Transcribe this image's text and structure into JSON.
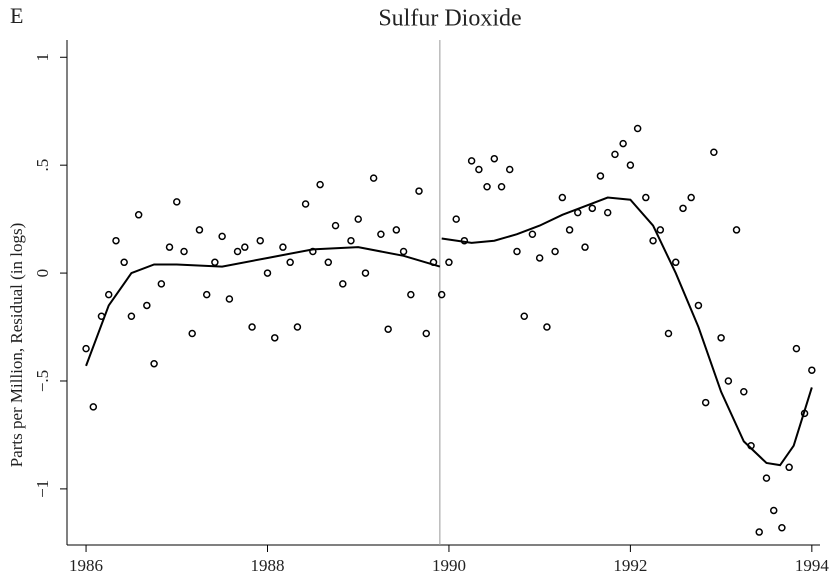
{
  "chart_data": {
    "type": "scatter",
    "panel_label": "E",
    "title": "Sulfur Dioxide",
    "ylabel": "Parts per Million, Residual (in logs)",
    "xlim": [
      1985.79,
      1994.09
    ],
    "ylim": [
      -1.26,
      1.08
    ],
    "xticks": [
      1986,
      1988,
      1990,
      1992,
      1994
    ],
    "yticks": [
      {
        "value": 1,
        "label": "1"
      },
      {
        "value": 0.5,
        "label": ".5"
      },
      {
        "value": 0,
        "label": "0"
      },
      {
        "value": -0.5,
        "label": "−.5"
      },
      {
        "value": -1,
        "label": "−1"
      }
    ],
    "vline": 1989.9,
    "color": "#000000",
    "points": {
      "x": [
        1986.0,
        1986.08,
        1986.17,
        1986.25,
        1986.33,
        1986.42,
        1986.5,
        1986.58,
        1986.67,
        1986.75,
        1986.83,
        1986.92,
        1987.0,
        1987.08,
        1987.17,
        1987.25,
        1987.33,
        1987.42,
        1987.5,
        1987.58,
        1987.67,
        1987.75,
        1987.83,
        1987.92,
        1988.0,
        1988.08,
        1988.17,
        1988.25,
        1988.33,
        1988.42,
        1988.5,
        1988.58,
        1988.67,
        1988.75,
        1988.83,
        1988.92,
        1989.0,
        1989.08,
        1989.17,
        1989.25,
        1989.33,
        1989.42,
        1989.5,
        1989.58,
        1989.67,
        1989.75,
        1989.83,
        1989.92,
        1990.0,
        1990.08,
        1990.17,
        1990.25,
        1990.33,
        1990.42,
        1990.5,
        1990.58,
        1990.67,
        1990.75,
        1990.83,
        1990.92,
        1991.0,
        1991.08,
        1991.17,
        1991.25,
        1991.33,
        1991.42,
        1991.5,
        1991.58,
        1991.67,
        1991.75,
        1991.83,
        1991.92,
        1992.0,
        1992.08,
        1992.17,
        1992.25,
        1992.33,
        1992.42,
        1992.5,
        1992.58,
        1992.67,
        1992.75,
        1992.83,
        1992.92,
        1993.0,
        1993.08,
        1993.17,
        1993.25,
        1993.33,
        1993.42,
        1993.5,
        1993.58,
        1993.67,
        1993.75,
        1993.83,
        1993.92,
        1994.0
      ],
      "y": [
        -0.35,
        -0.62,
        -0.2,
        -0.1,
        0.15,
        0.05,
        -0.2,
        0.27,
        -0.15,
        -0.42,
        -0.05,
        0.12,
        0.33,
        0.1,
        -0.28,
        0.2,
        -0.1,
        0.05,
        0.17,
        -0.12,
        0.1,
        0.12,
        -0.25,
        0.15,
        0.0,
        -0.3,
        0.12,
        0.05,
        -0.25,
        0.32,
        0.1,
        0.41,
        0.05,
        0.22,
        -0.05,
        0.15,
        0.25,
        0.0,
        0.44,
        0.18,
        -0.26,
        0.2,
        0.1,
        -0.1,
        0.38,
        -0.28,
        0.05,
        -0.1,
        0.05,
        0.25,
        0.15,
        0.52,
        0.48,
        0.4,
        0.53,
        0.4,
        0.48,
        0.1,
        -0.2,
        0.18,
        0.07,
        -0.25,
        0.1,
        0.35,
        0.2,
        0.28,
        0.12,
        0.3,
        0.45,
        0.28,
        0.55,
        0.6,
        0.5,
        0.67,
        0.35,
        0.15,
        0.2,
        -0.28,
        0.05,
        0.3,
        0.35,
        -0.15,
        -0.6,
        0.56,
        -0.3,
        -0.5,
        0.2,
        -0.55,
        -0.8,
        -1.2,
        -0.95,
        -1.1,
        -1.18,
        -0.9,
        -0.35,
        -0.65,
        -0.45
      ]
    },
    "fits": [
      {
        "x": [
          1986.0,
          1986.25,
          1986.5,
          1986.75,
          1987.0,
          1987.5,
          1988.0,
          1988.5,
          1989.0,
          1989.5,
          1989.9
        ],
        "y": [
          -0.43,
          -0.15,
          0.0,
          0.04,
          0.04,
          0.03,
          0.07,
          0.11,
          0.12,
          0.08,
          0.03
        ]
      },
      {
        "x": [
          1989.92,
          1990.25,
          1990.5,
          1990.75,
          1991.0,
          1991.25,
          1991.5,
          1991.75,
          1992.0,
          1992.25,
          1992.5,
          1992.75,
          1993.0,
          1993.25,
          1993.5,
          1993.65,
          1993.8,
          1994.0
        ],
        "y": [
          0.16,
          0.14,
          0.15,
          0.18,
          0.22,
          0.27,
          0.31,
          0.35,
          0.34,
          0.22,
          0.0,
          -0.25,
          -0.55,
          -0.78,
          -0.88,
          -0.89,
          -0.8,
          -0.53
        ]
      }
    ]
  }
}
